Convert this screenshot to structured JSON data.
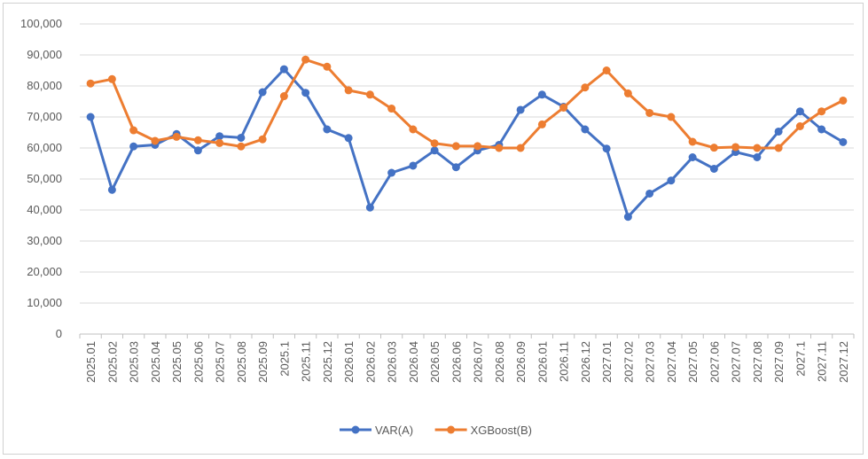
{
  "chart_data": {
    "type": "line",
    "title": "",
    "xlabel": "",
    "ylabel": "",
    "ylim": [
      0,
      100000
    ],
    "yticks": [
      0,
      10000,
      20000,
      30000,
      40000,
      50000,
      60000,
      70000,
      80000,
      90000,
      100000
    ],
    "ytick_labels": [
      "0",
      "10,000",
      "20,000",
      "30,000",
      "40,000",
      "50,000",
      "60,000",
      "70,000",
      "80,000",
      "90,000",
      "100,000"
    ],
    "grid": true,
    "legend_position": "bottom",
    "categories": [
      "2025.01",
      "2025.02",
      "2025.03",
      "2025.04",
      "2025.05",
      "2025.06",
      "2025.07",
      "2025.08",
      "2025.09",
      "2025.1",
      "2025.11",
      "2025.12",
      "2026.01",
      "2026.02",
      "2026.03",
      "2026.04",
      "2026.05",
      "2026.06",
      "2026.07",
      "2026.08",
      "2026.09",
      "2026.01",
      "2026.11",
      "2026.12",
      "2027.01",
      "2027.02",
      "2027.03",
      "2027.04",
      "2027.05",
      "2027.06",
      "2027.07",
      "2027.08",
      "2027.09",
      "2027.1",
      "2027.11",
      "2027.12"
    ],
    "series": [
      {
        "name": "VAR(A)",
        "color": "#4472c4",
        "values": [
          70000,
          46500,
          60500,
          61000,
          64500,
          59200,
          63800,
          63300,
          78000,
          85400,
          77800,
          66000,
          63200,
          40800,
          52000,
          54300,
          59200,
          53800,
          59200,
          61000,
          72300,
          77200,
          73300,
          66000,
          59800,
          37800,
          45300,
          49500,
          57000,
          53300,
          58700,
          57000,
          65300,
          71800,
          66000,
          61900
        ]
      },
      {
        "name": "XGBoost(B)",
        "color": "#ed7d31",
        "values": [
          80800,
          82200,
          65700,
          62300,
          63600,
          62500,
          61600,
          60500,
          62800,
          76700,
          88500,
          86200,
          78600,
          77200,
          72700,
          66000,
          61500,
          60600,
          60600,
          60000,
          60000,
          67600,
          73000,
          79500,
          85000,
          77600,
          71300,
          70000,
          62000,
          60100,
          60300,
          60000,
          60000,
          67000,
          71800,
          75300
        ]
      }
    ]
  }
}
